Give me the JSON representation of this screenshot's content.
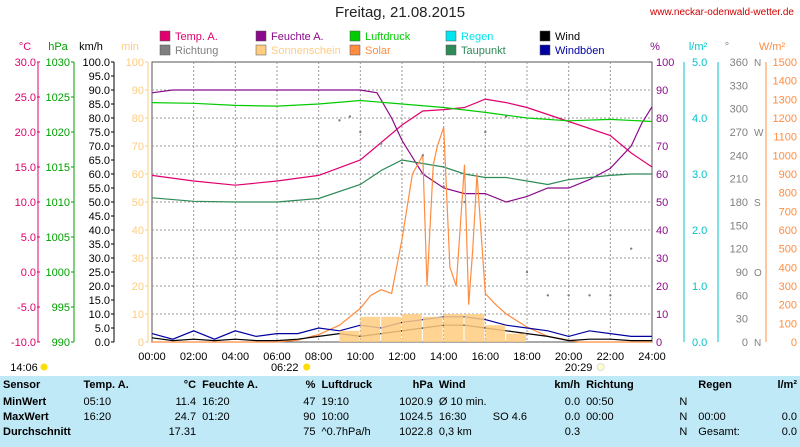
{
  "title": "Freitag, 21.08.2015",
  "site": "www.neckar-odenwald-wetter.de",
  "legend": [
    {
      "label": "Temp. A.",
      "color": "#e0006e"
    },
    {
      "label": "Feuchte A.",
      "color": "#8b0a8b"
    },
    {
      "label": "Luftdruck",
      "color": "#00cc00"
    },
    {
      "label": "Regen",
      "color": "#00e5ee"
    },
    {
      "label": "Wind",
      "color": "#000000"
    },
    {
      "label": "Richtung",
      "color": "#808080"
    },
    {
      "label": "Sonnenschein",
      "color": "#ffcc80"
    },
    {
      "label": "Solar",
      "color": "#ff8c40"
    },
    {
      "label": "Taupunkt",
      "color": "#2e8b57"
    },
    {
      "label": "Windböen",
      "color": "#0000a0"
    }
  ],
  "axis_units": {
    "temp": "°C",
    "press": "hPa",
    "wind": "km/h",
    "sun": "min",
    "hum": "%",
    "rain": "l/m²",
    "dir": "°",
    "solar": "W/m²"
  },
  "axis_colors": {
    "temp": "#e0006e",
    "press": "#00a000",
    "wind": "#000000",
    "sun": "#ffcc80",
    "hum": "#8b0a8b",
    "rain": "#00c5cc",
    "dir": "#808080",
    "solar": "#ff8c40"
  },
  "temp_ticks": [
    "-10.0",
    "-5.0",
    "0.0",
    "5.0",
    "10.0",
    "15.0",
    "20.0",
    "25.0",
    "30.0"
  ],
  "press_ticks": [
    "990",
    "995",
    "1000",
    "1005",
    "1010",
    "1015",
    "1020",
    "1025",
    "1030"
  ],
  "wind_ticks": [
    "0.0",
    "5.0",
    "10.0",
    "15.0",
    "20.0",
    "25.0",
    "30.0",
    "35.0",
    "40.0",
    "45.0",
    "50.0",
    "55.0",
    "60.0",
    "65.0",
    "70.0",
    "75.0",
    "80.0",
    "85.0",
    "90.0",
    "95.0",
    "100.0"
  ],
  "sun_ticks": [
    "0",
    "10",
    "20",
    "30",
    "40",
    "50",
    "60",
    "70",
    "80",
    "90",
    "100"
  ],
  "hum_ticks": [
    "0",
    "10",
    "20",
    "30",
    "40",
    "50",
    "60",
    "70",
    "80",
    "90",
    "100"
  ],
  "rain_ticks": [
    "0.0",
    "1.0",
    "2.0",
    "3.0",
    "4.0",
    "5.0"
  ],
  "dir_ticks": [
    "0",
    "30",
    "60",
    "90",
    "120",
    "150",
    "180",
    "210",
    "240",
    "270",
    "300",
    "330",
    "360"
  ],
  "dir_letters": {
    "N": "N",
    "O": "O",
    "S": "S",
    "W": "W",
    "N2": "N"
  },
  "solar_ticks": [
    "0",
    "100",
    "200",
    "300",
    "400",
    "500",
    "600",
    "700",
    "800",
    "900",
    "1000",
    "1100",
    "1200",
    "1300",
    "1400",
    "1500"
  ],
  "x_ticks": [
    "00:00",
    "02:00",
    "04:00",
    "06:00",
    "08:00",
    "10:00",
    "12:00",
    "14:00",
    "16:00",
    "18:00",
    "20:00",
    "22:00",
    "24:00"
  ],
  "sunrise": "06:22",
  "sunset": "20:29",
  "moon_time": "14:06",
  "chart_data": {
    "type": "line",
    "x_unit": "hour",
    "xlim": [
      0,
      24
    ],
    "series": [
      {
        "name": "Temp. A.",
        "unit": "°C",
        "x": [
          0,
          2,
          4,
          6,
          8,
          10,
          11,
          12,
          13,
          14,
          15,
          16,
          17,
          18,
          19,
          20,
          21,
          22,
          23,
          24
        ],
        "y": [
          13.8,
          13,
          12.4,
          13,
          13.8,
          16,
          18.5,
          21,
          23,
          23.2,
          23.5,
          24.7,
          24.2,
          23.5,
          22.5,
          21.5,
          20.5,
          19.5,
          17,
          15
        ]
      },
      {
        "name": "Feuchte A.",
        "unit": "%",
        "x": [
          0,
          1,
          2,
          4,
          6,
          8,
          10,
          10.8,
          11.5,
          12,
          13,
          14,
          15,
          16,
          17,
          18,
          19,
          20,
          21,
          22,
          23,
          23.5,
          24
        ],
        "y": [
          89,
          90,
          90,
          90,
          90,
          90,
          90,
          89,
          80,
          72,
          60,
          55,
          53,
          53,
          50,
          52,
          55,
          55,
          58,
          62,
          70,
          78,
          84
        ]
      },
      {
        "name": "Luftdruck",
        "unit": "hPa",
        "x": [
          0,
          2,
          4,
          6,
          8,
          10,
          12,
          14,
          16,
          18,
          20,
          22,
          24
        ],
        "y": [
          1024.2,
          1024.1,
          1023.8,
          1023.7,
          1024.0,
          1024.5,
          1024.0,
          1023.5,
          1022.8,
          1022.0,
          1021.6,
          1021.8,
          1021.5
        ]
      },
      {
        "name": "Taupunkt",
        "unit": "°C",
        "x": [
          0,
          2,
          4,
          6,
          8,
          10,
          11,
          12,
          13,
          14,
          15,
          16,
          17,
          18,
          19,
          20,
          21,
          22,
          23,
          24
        ],
        "y": [
          10.6,
          10.1,
          10,
          10,
          10.5,
          12.5,
          14.5,
          16,
          15.5,
          15,
          14,
          13.5,
          13.5,
          13,
          12.5,
          13.2,
          13.5,
          13.8,
          14,
          14
        ]
      },
      {
        "name": "Solar",
        "unit": "W/m²",
        "x": [
          0,
          6,
          7,
          8,
          9,
          10,
          10.5,
          11,
          11.5,
          12,
          12.5,
          13,
          13.2,
          13.5,
          13.7,
          14,
          14.3,
          14.6,
          15,
          15.2,
          15.4,
          15.6,
          16,
          16.5,
          17,
          18,
          19,
          20,
          20.5,
          24
        ],
        "y": [
          0,
          0,
          10,
          40,
          90,
          180,
          250,
          280,
          260,
          550,
          900,
          1000,
          300,
          950,
          1050,
          1150,
          400,
          300,
          950,
          200,
          500,
          900,
          260,
          200,
          150,
          80,
          30,
          10,
          0,
          0
        ]
      },
      {
        "name": "Wind",
        "unit": "km/h",
        "x": [
          0,
          1,
          2,
          3,
          4,
          5,
          6,
          7,
          8,
          9,
          10,
          11,
          12,
          13,
          14,
          15,
          16,
          17,
          18,
          19,
          20,
          21,
          22,
          23,
          24
        ],
        "y": [
          1.5,
          0.5,
          1,
          0.5,
          1,
          0.5,
          0.5,
          1,
          2,
          3,
          2,
          3,
          4,
          5,
          6,
          6,
          5,
          4,
          3,
          2,
          0.5,
          1,
          1,
          0.5,
          0.5
        ]
      },
      {
        "name": "Windböen",
        "unit": "km/h",
        "x": [
          0,
          1,
          2,
          3,
          4,
          5,
          6,
          7,
          8,
          9,
          10,
          11,
          12,
          13,
          14,
          15,
          16,
          17,
          18,
          19,
          20,
          21,
          22,
          23,
          24
        ],
        "y": [
          3,
          1,
          4,
          1,
          4,
          2,
          3,
          3,
          5,
          4,
          6,
          5,
          7,
          8,
          9,
          9,
          8,
          6,
          5,
          4,
          2,
          4,
          3,
          2,
          2
        ]
      },
      {
        "name": "Sonnenschein",
        "unit": "min",
        "x": [
          9,
          10,
          11,
          12,
          13,
          14,
          15,
          16,
          17
        ],
        "y": [
          4,
          9,
          9,
          10,
          9,
          10,
          10,
          6,
          3
        ]
      },
      {
        "name": "Richtung",
        "unit": "°",
        "x": [
          9,
          9.5,
          10,
          11,
          12,
          13,
          14,
          15,
          16,
          17,
          18,
          19,
          20,
          21,
          22,
          23
        ],
        "y": [
          285,
          290,
          270,
          255,
          230,
          240,
          200,
          180,
          270,
          290,
          90,
          60,
          60,
          60,
          60,
          120
        ]
      }
    ]
  },
  "summary": {
    "headers": {
      "sensor": "Sensor",
      "temp": "Temp. A.",
      "temp_u": "°C",
      "hum": "Feuchte A.",
      "hum_u": "%",
      "press": "Luftdruck",
      "press_u": "hPa",
      "wind": "Wind",
      "wind_u": "km/h",
      "dir": "Richtung",
      "rain": "Regen",
      "rain_u": "l/m²"
    },
    "rows": [
      {
        "label": "MinWert",
        "t_time": "05:10",
        "t_val": "11.4",
        "h_time": "16:20",
        "h_val": "47",
        "p_time": "19:10",
        "p_val": "1020.9",
        "w_a": "Ø 10 min.",
        "w_val": "0.0",
        "d_time": "00:50",
        "d_val": "N",
        "r_time": "",
        "r_val": ""
      },
      {
        "label": "MaxWert",
        "t_time": "16:20",
        "t_val": "24.7",
        "h_time": "01:20",
        "h_val": "90",
        "p_time": "10:00",
        "p_val": "1024.5",
        "w_a": "16:30",
        "w_b": "SO 4.6",
        "w_val": "0.0",
        "d_time": "00:00",
        "d_val": "N",
        "r_time": "00:00",
        "r_val": "0.0"
      },
      {
        "label": "Durchschnitt",
        "t_time": "",
        "t_val": "17.31",
        "h_time": "",
        "h_val": "75",
        "p_time": "^0.7hPa/h",
        "p_val": "1022.8",
        "w_a": "0,3 km",
        "w_val": "0.3",
        "d_time": "",
        "d_val": "N",
        "r_time": "Gesamt:",
        "r_val": "0.0"
      }
    ]
  }
}
